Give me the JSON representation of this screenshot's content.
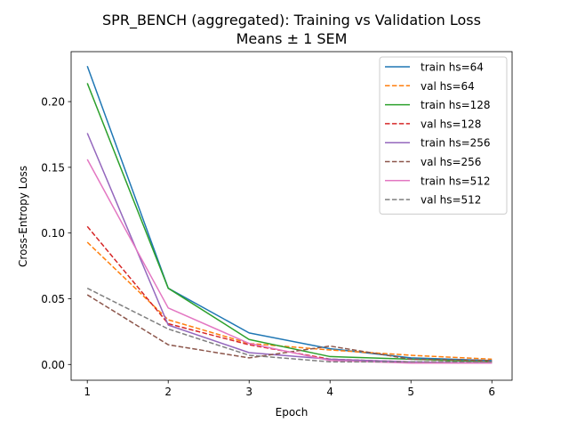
{
  "chart_data": {
    "type": "line",
    "title": "SPR_BENCH (aggregated): Training vs Validation Loss",
    "subtitle": "Means ± 1 SEM",
    "xlabel": "Epoch",
    "ylabel": "Cross-Entropy Loss",
    "x": [
      1,
      2,
      3,
      4,
      5,
      6
    ],
    "xlim": [
      0.8,
      6.25
    ],
    "ylim": [
      -0.012,
      0.238
    ],
    "xticks": [
      "1",
      "2",
      "3",
      "4",
      "5",
      "6"
    ],
    "yticks": [
      0.0,
      0.05,
      0.1,
      0.15,
      0.2
    ],
    "ytick_labels": [
      "0.00",
      "0.05",
      "0.10",
      "0.15",
      "0.20"
    ],
    "grid": false,
    "legend_position": "top-right",
    "series": [
      {
        "name": "train hs=64",
        "color": "#1f77b4",
        "dash": "solid",
        "values": [
          0.227,
          0.058,
          0.024,
          0.012,
          0.005,
          0.003
        ]
      },
      {
        "name": "val hs=64",
        "color": "#ff7f0e",
        "dash": "dashed",
        "values": [
          0.093,
          0.034,
          0.016,
          0.011,
          0.007,
          0.004
        ]
      },
      {
        "name": "train hs=128",
        "color": "#2ca02c",
        "dash": "solid",
        "values": [
          0.214,
          0.058,
          0.019,
          0.006,
          0.004,
          0.002
        ]
      },
      {
        "name": "val hs=128",
        "color": "#d62728",
        "dash": "dashed",
        "values": [
          0.105,
          0.031,
          0.015,
          0.004,
          0.002,
          0.002
        ]
      },
      {
        "name": "train hs=256",
        "color": "#9467bd",
        "dash": "solid",
        "values": [
          0.176,
          0.03,
          0.009,
          0.004,
          0.002,
          0.001
        ]
      },
      {
        "name": "val hs=256",
        "color": "#8c564b",
        "dash": "dashed",
        "values": [
          0.053,
          0.015,
          0.005,
          0.014,
          0.004,
          0.003
        ]
      },
      {
        "name": "train hs=512",
        "color": "#e377c2",
        "dash": "solid",
        "values": [
          0.156,
          0.043,
          0.016,
          0.003,
          0.001,
          0.001
        ]
      },
      {
        "name": "val hs=512",
        "color": "#7f7f7f",
        "dash": "dashed",
        "values": [
          0.058,
          0.027,
          0.007,
          0.002,
          0.002,
          0.002
        ]
      }
    ]
  }
}
